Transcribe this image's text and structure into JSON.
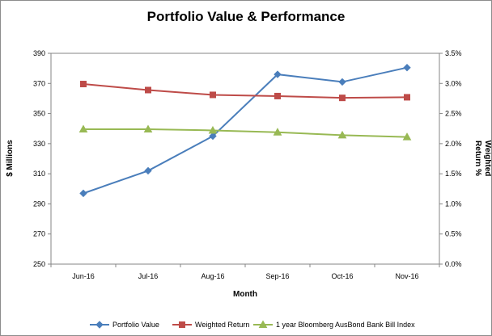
{
  "chart_data": {
    "type": "line",
    "title": "Portfolio Value & Performance",
    "xlabel": "Month",
    "ylabel_left": "$ Millions",
    "ylabel_right": [
      "Weighted",
      "Return %"
    ],
    "categories": [
      "Jun-16",
      "Jul-16",
      "Aug-16",
      "Sep-16",
      "Oct-16",
      "Nov-16"
    ],
    "ylim_left": [
      250,
      390
    ],
    "yticks_left": [
      "250",
      "270",
      "290",
      "310",
      "330",
      "350",
      "370",
      "390"
    ],
    "ylim_right": [
      0,
      3.5
    ],
    "yticks_right": [
      "0.0%",
      "0.5%",
      "1.0%",
      "1.5%",
      "2.0%",
      "2.5%",
      "3.0%",
      "3.5%"
    ],
    "grid": false,
    "legend_position": "bottom",
    "series": [
      {
        "name": "Portfolio Value",
        "axis": "left",
        "color": "#4a7ebb",
        "marker": "diamond",
        "values": [
          297,
          312,
          335,
          376,
          371,
          380.5
        ]
      },
      {
        "name": "Weighted Return",
        "axis": "right",
        "color": "#be4b48",
        "marker": "square",
        "values": [
          2.99,
          2.89,
          2.81,
          2.79,
          2.76,
          2.77
        ]
      },
      {
        "name": "1 year Bloomberg AusBond Bank Bill Index",
        "axis": "right",
        "color": "#98b954",
        "marker": "triangle",
        "values": [
          2.24,
          2.24,
          2.22,
          2.19,
          2.14,
          2.11
        ]
      }
    ]
  }
}
